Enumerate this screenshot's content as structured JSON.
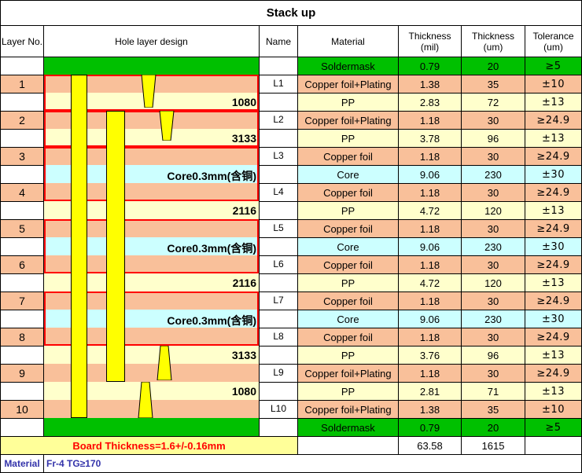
{
  "title": "Stack up",
  "headers": {
    "layer_no": "Layer No.",
    "hole_design": "Hole layer design",
    "name": "Name",
    "material": "Material",
    "thickness_mil": "Thickness\n(mil)",
    "thickness_um": "Thickness\n(um)",
    "tolerance": "Tolerance\n(um)"
  },
  "rows": [
    {
      "layer": "",
      "design_label": "",
      "name": "",
      "material": "Soldermask",
      "mil": "0.79",
      "um": "20",
      "tol": "≥5",
      "type": "mask"
    },
    {
      "layer": "1",
      "design_label": "",
      "name": "L1",
      "material": "Copper foil+Plating",
      "mil": "1.38",
      "um": "35",
      "tol": "±10",
      "type": "copper"
    },
    {
      "layer": "",
      "design_label": "1080",
      "name": "",
      "material": "PP",
      "mil": "2.83",
      "um": "72",
      "tol": "±13",
      "type": "pp"
    },
    {
      "layer": "2",
      "design_label": "",
      "name": "L2",
      "material": "Copper foil+Plating",
      "mil": "1.18",
      "um": "30",
      "tol": "≥24.9",
      "type": "copper"
    },
    {
      "layer": "",
      "design_label": "3133",
      "name": "",
      "material": "PP",
      "mil": "3.78",
      "um": "96",
      "tol": "±13",
      "type": "pp"
    },
    {
      "layer": "3",
      "design_label": "",
      "name": "L3",
      "material": "Copper foil",
      "mil": "1.18",
      "um": "30",
      "tol": "≥24.9",
      "type": "copper"
    },
    {
      "layer": "",
      "design_label": "Core0.3mm(含铜)",
      "name": "",
      "material": "Core",
      "mil": "9.06",
      "um": "230",
      "tol": "±30",
      "type": "core"
    },
    {
      "layer": "4",
      "design_label": "",
      "name": "L4",
      "material": "Copper foil",
      "mil": "1.18",
      "um": "30",
      "tol": "≥24.9",
      "type": "copper"
    },
    {
      "layer": "",
      "design_label": "2116",
      "name": "",
      "material": "PP",
      "mil": "4.72",
      "um": "120",
      "tol": "±13",
      "type": "pp"
    },
    {
      "layer": "5",
      "design_label": "",
      "name": "L5",
      "material": "Copper foil",
      "mil": "1.18",
      "um": "30",
      "tol": "≥24.9",
      "type": "copper"
    },
    {
      "layer": "",
      "design_label": "Core0.3mm(含铜)",
      "name": "",
      "material": "Core",
      "mil": "9.06",
      "um": "230",
      "tol": "±30",
      "type": "core"
    },
    {
      "layer": "6",
      "design_label": "",
      "name": "L6",
      "material": "Copper foil",
      "mil": "1.18",
      "um": "30",
      "tol": "≥24.9",
      "type": "copper"
    },
    {
      "layer": "",
      "design_label": "2116",
      "name": "",
      "material": "PP",
      "mil": "4.72",
      "um": "120",
      "tol": "±13",
      "type": "pp"
    },
    {
      "layer": "7",
      "design_label": "",
      "name": "L7",
      "material": "Copper foil",
      "mil": "1.18",
      "um": "30",
      "tol": "≥24.9",
      "type": "copper"
    },
    {
      "layer": "",
      "design_label": "Core0.3mm(含铜)",
      "name": "",
      "material": "Core",
      "mil": "9.06",
      "um": "230",
      "tol": "±30",
      "type": "core"
    },
    {
      "layer": "8",
      "design_label": "",
      "name": "L8",
      "material": "Copper foil",
      "mil": "1.18",
      "um": "30",
      "tol": "≥24.9",
      "type": "copper"
    },
    {
      "layer": "",
      "design_label": "3133",
      "name": "",
      "material": "PP",
      "mil": "3.76",
      "um": "96",
      "tol": "±13",
      "type": "pp"
    },
    {
      "layer": "9",
      "design_label": "",
      "name": "L9",
      "material": "Copper foil+Plating",
      "mil": "1.18",
      "um": "30",
      "tol": "≥24.9",
      "type": "copper"
    },
    {
      "layer": "",
      "design_label": "1080",
      "name": "",
      "material": "PP",
      "mil": "2.81",
      "um": "71",
      "tol": "±13",
      "type": "pp"
    },
    {
      "layer": "10",
      "design_label": "",
      "name": "L10",
      "material": "Copper foil+Plating",
      "mil": "1.38",
      "um": "35",
      "tol": "±10",
      "type": "copper"
    },
    {
      "layer": "",
      "design_label": "",
      "name": "",
      "material": "Soldermask",
      "mil": "0.79",
      "um": "20",
      "tol": "≥5",
      "type": "mask"
    }
  ],
  "totals": {
    "board_thickness": "Board Thickness=1.6+/-0.16mm",
    "mil": "63.58",
    "um": "1615"
  },
  "footer": {
    "label": "Material",
    "value": "Fr-4  TG≥170"
  },
  "colors": {
    "mask": "#00c000",
    "copper": "#f9c09a",
    "pp": "#ffffcc",
    "core": "#ccffff",
    "via": "#ffff00",
    "core_outline": "#ff0000",
    "footer_text": "#3333aa",
    "board_text": "#ff0000",
    "board_bg": "#ffff99"
  }
}
